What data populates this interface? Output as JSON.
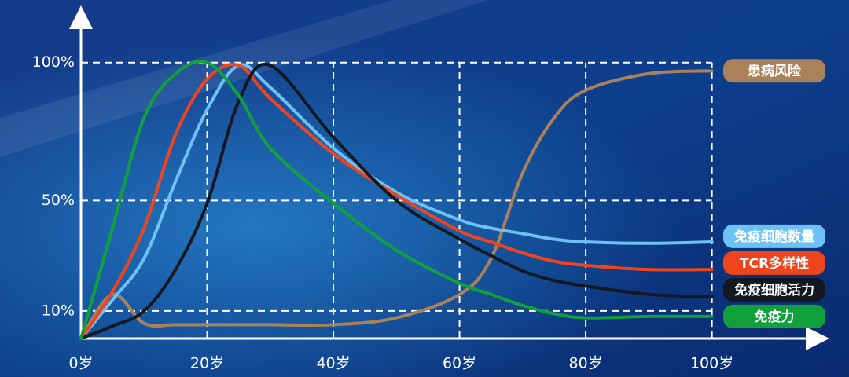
{
  "chart_data": {
    "type": "line",
    "x": [
      0,
      5,
      10,
      15,
      20,
      25,
      30,
      40,
      50,
      60,
      65,
      70,
      75,
      80,
      90,
      100
    ],
    "series": [
      {
        "name": "患病风险",
        "color": "#a9825a",
        "values": [
          0,
          16,
          5.5,
          5,
          5,
          5,
          5,
          5,
          7.5,
          16,
          29,
          60,
          80,
          90,
          96,
          97
        ]
      },
      {
        "name": "免疫细胞数量",
        "color": "#6ec1f4",
        "values": [
          0,
          14,
          29,
          57,
          83,
          99,
          91,
          69,
          53,
          43,
          40,
          38,
          36,
          35,
          34.5,
          35
        ]
      },
      {
        "name": "TCR多样性",
        "color": "#f0451c",
        "values": [
          0,
          17,
          40,
          74,
          94,
          99,
          87,
          67,
          52,
          39,
          35,
          31,
          28,
          26.5,
          25,
          25
        ]
      },
      {
        "name": "免疫细胞活力",
        "color": "#141821",
        "values": [
          0,
          4.5,
          10,
          25,
          49,
          86,
          99,
          73,
          50,
          36,
          30,
          24.5,
          21,
          19,
          16,
          15
        ]
      },
      {
        "name": "免疫力",
        "color": "#12a03c",
        "values": [
          0,
          40,
          80,
          96,
          100,
          88,
          69,
          49,
          32,
          20,
          16,
          12,
          9,
          7.5,
          8,
          8
        ]
      }
    ],
    "xlim": [
      0,
      115
    ],
    "ylim": [
      0,
      115
    ],
    "xticks": [
      {
        "value": 0,
        "label": "0岁"
      },
      {
        "value": 20,
        "label": "20岁"
      },
      {
        "value": 40,
        "label": "40岁"
      },
      {
        "value": 60,
        "label": "60岁"
      },
      {
        "value": 80,
        "label": "80岁"
      },
      {
        "value": 100,
        "label": "100岁"
      }
    ],
    "yticks": [
      {
        "value": 10,
        "label": "10%"
      },
      {
        "value": 50,
        "label": "50%"
      },
      {
        "value": 100,
        "label": "100%"
      }
    ],
    "grid": true
  }
}
